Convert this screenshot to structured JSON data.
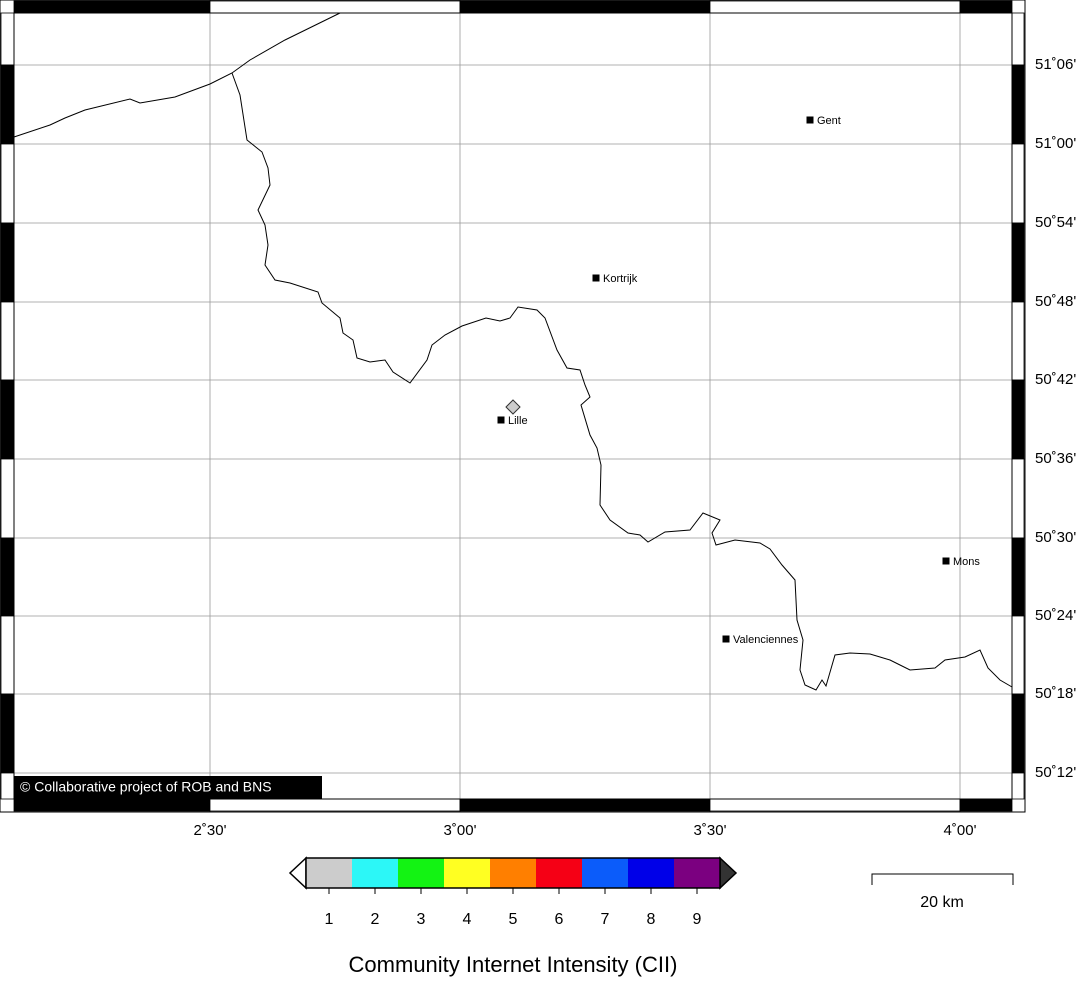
{
  "map": {
    "credit": "© Collaborative project of ROB and BNS",
    "lon_labels": [
      "2˚30'",
      "3˚00'",
      "3˚30'",
      "4˚00'"
    ],
    "lat_labels": [
      "51˚06'",
      "51˚00'",
      "50˚54'",
      "50˚48'",
      "50˚42'",
      "50˚36'",
      "50˚30'",
      "50˚24'",
      "50˚18'",
      "50˚12'"
    ],
    "cities": [
      "Gent",
      "Kortrijk",
      "Lille",
      "Mons",
      "Valenciennes"
    ]
  },
  "legend": {
    "title": "Community Internet Intensity (CII)",
    "labels": [
      "1",
      "2",
      "3",
      "4",
      "5",
      "6",
      "7",
      "8",
      "9"
    ],
    "colors": [
      "#cccccc",
      "#2cf7f7",
      "#13f313",
      "#ffff22",
      "#ff7f00",
      "#f50015",
      "#0b5cfa",
      "#0000e8",
      "#7b0080"
    ],
    "under_color": "#ffffff",
    "over_color": "#333333"
  },
  "scale_bar": {
    "label": "20 km"
  }
}
